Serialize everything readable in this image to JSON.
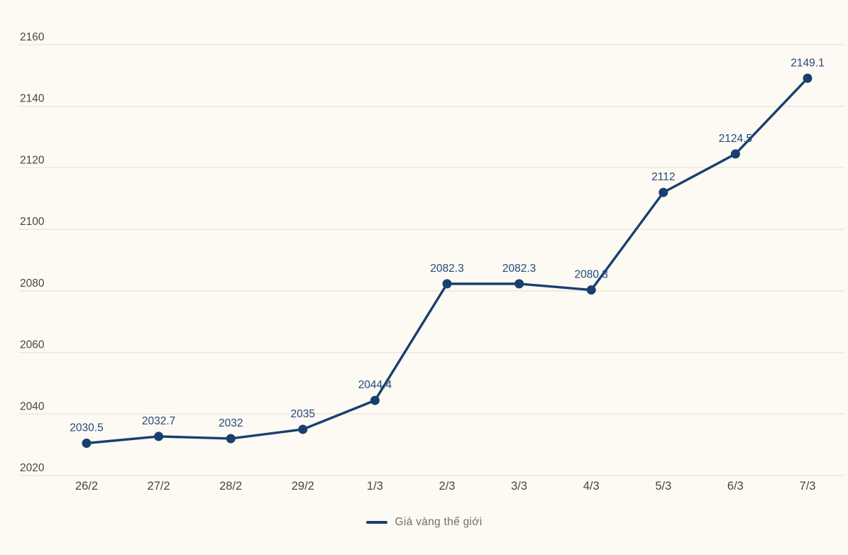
{
  "chart_data": {
    "type": "line",
    "categories": [
      "26/2",
      "27/2",
      "28/2",
      "29/2",
      "1/3",
      "2/3",
      "3/3",
      "4/3",
      "5/3",
      "6/3",
      "7/3"
    ],
    "series": [
      {
        "name": "Giá vàng thế giới",
        "values": [
          2030.5,
          2032.7,
          2032,
          2035,
          2044.4,
          2082.3,
          2082.3,
          2080.3,
          2112,
          2124.5,
          2149.1
        ]
      }
    ],
    "y_ticks": [
      2020,
      2040,
      2060,
      2080,
      2100,
      2120,
      2140,
      2160
    ],
    "ylim": [
      2020,
      2160
    ],
    "title": "",
    "xlabel": "",
    "ylabel": "",
    "grid": true,
    "data_labels": true,
    "legend_position": "bottom"
  },
  "legend": {
    "label": "Giá vàng thế giới"
  },
  "colors": {
    "background": "#FDF9F3",
    "line": "#17406F",
    "marker": "#17406F",
    "data_label": "#23497B",
    "axis_label": "#4A453F",
    "gridline": "#E8E4DD",
    "legend_text": "#6E6E6E",
    "legend_swatch": "#17406F"
  }
}
